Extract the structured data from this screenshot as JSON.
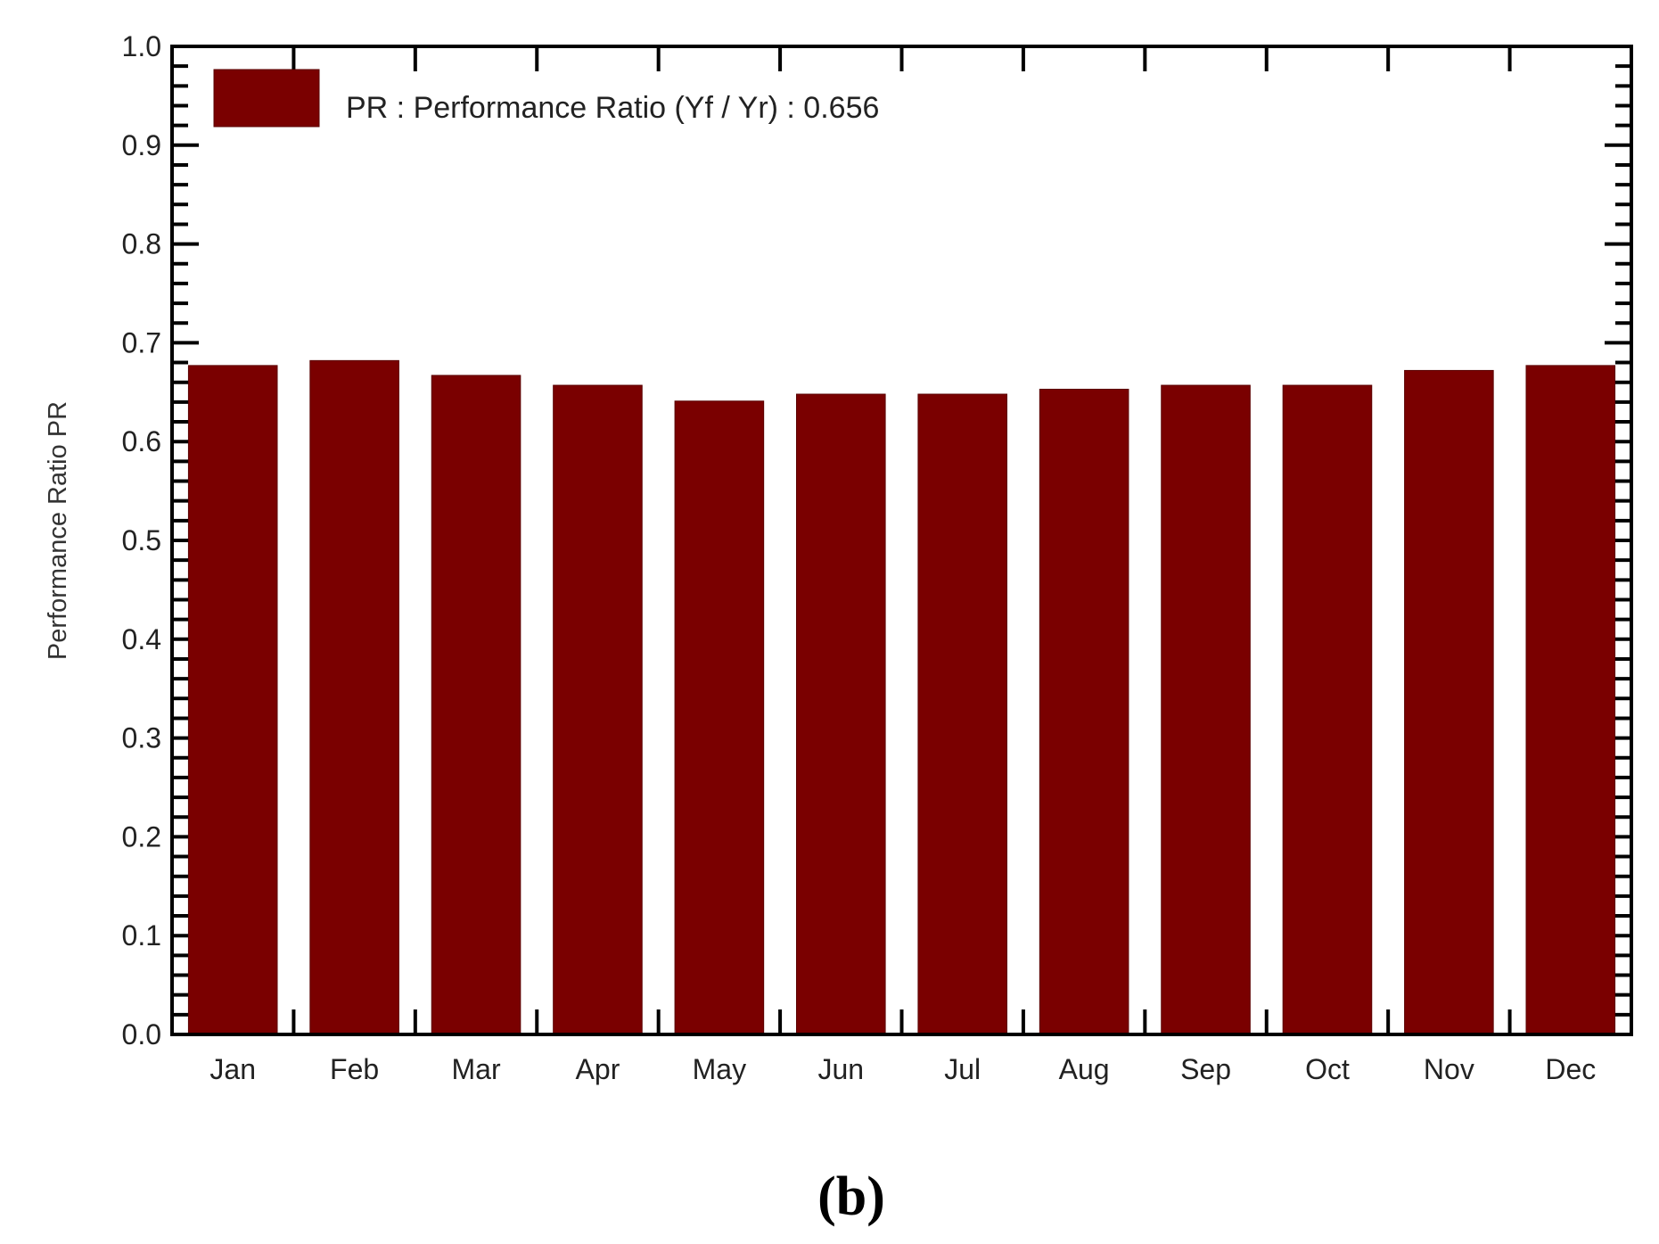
{
  "chart_data": {
    "type": "bar",
    "categories": [
      "Jan",
      "Feb",
      "Mar",
      "Apr",
      "May",
      "Jun",
      "Jul",
      "Aug",
      "Sep",
      "Oct",
      "Nov",
      "Dec"
    ],
    "series": [
      {
        "name": "PR : Performance Ratio (Yf / Yr) :  0.656",
        "values": [
          0.677,
          0.682,
          0.667,
          0.657,
          0.641,
          0.648,
          0.648,
          0.653,
          0.657,
          0.657,
          0.672,
          0.677
        ],
        "color": "#7a0000"
      }
    ],
    "ylabel": "Performance  Ratio  PR",
    "xlabel": "",
    "ylim": [
      0,
      1.0
    ],
    "yticks": [
      "0.0",
      "0.1",
      "0.2",
      "0.3",
      "0.4",
      "0.5",
      "0.6",
      "0.7",
      "0.8",
      "0.9",
      "1.0"
    ],
    "legend_position": "top-left",
    "grid": false
  },
  "caption": "(b)"
}
